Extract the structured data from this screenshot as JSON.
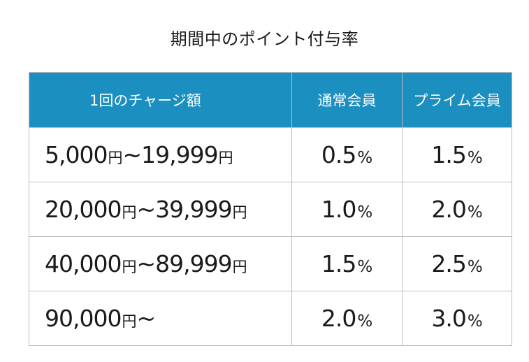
{
  "title": "期間中のポイント付与率",
  "table": {
    "headers": {
      "range": "1回のチャージ額",
      "regular": "通常会員",
      "prime": "プライム会員"
    },
    "rows": [
      {
        "range_from": "5,000",
        "unit_from": "円",
        "tilde": "~",
        "range_to": "19,999",
        "unit_to": "円",
        "regular": "0.5",
        "regular_pct": "%",
        "prime": "1.5",
        "prime_pct": "%"
      },
      {
        "range_from": "20,000",
        "unit_from": "円",
        "tilde": "~",
        "range_to": "39,999",
        "unit_to": "円",
        "regular": "1.0",
        "regular_pct": "%",
        "prime": "2.0",
        "prime_pct": "%"
      },
      {
        "range_from": "40,000",
        "unit_from": "円",
        "tilde": "~",
        "range_to": "89,999",
        "unit_to": "円",
        "regular": "1.5",
        "regular_pct": "%",
        "prime": "2.5",
        "prime_pct": "%"
      },
      {
        "range_from": "90,000",
        "unit_from": "円",
        "tilde": "~",
        "range_to": "",
        "unit_to": "",
        "regular": "2.0",
        "regular_pct": "%",
        "prime": "3.0",
        "prime_pct": "%"
      }
    ]
  },
  "colors": {
    "header_bg": "#1b8fc0",
    "header_text": "#ffffff",
    "border": "#bdbdbd",
    "text": "#1a1a1a"
  }
}
